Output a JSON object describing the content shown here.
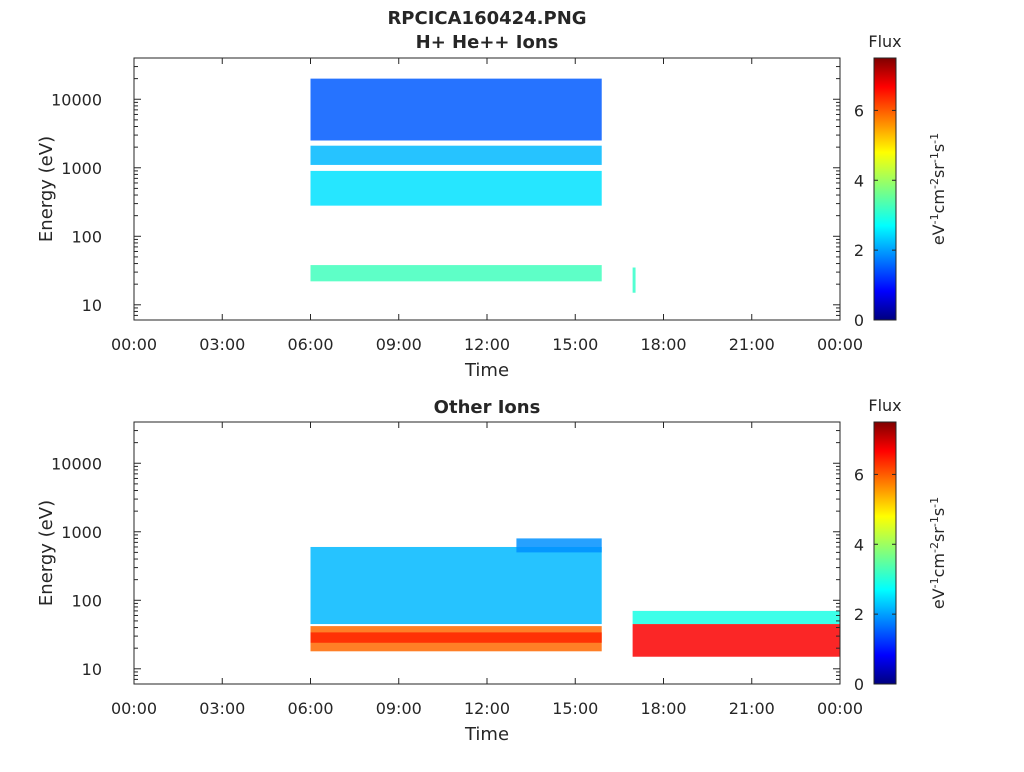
{
  "figure_title": "RPCICA160424.PNG",
  "chart_data": [
    {
      "type": "heatmap",
      "title": "H+ He++ Ions",
      "xlabel": "Time",
      "ylabel": "Energy (eV)",
      "x_tick_labels": [
        "00:00",
        "03:00",
        "06:00",
        "09:00",
        "12:00",
        "15:00",
        "18:00",
        "21:00",
        "00:00"
      ],
      "x_ticks_hours": [
        0,
        3,
        6,
        9,
        12,
        15,
        18,
        21,
        24
      ],
      "xlim_hours": [
        0,
        24
      ],
      "y_scale": "log",
      "ylim": [
        6,
        40000
      ],
      "y_ticks": [
        10,
        100,
        1000,
        10000
      ],
      "y_tick_labels": [
        "10",
        "100",
        "1000",
        "10000"
      ],
      "colorbar": {
        "title": "Flux",
        "label_main": "eV",
        "unit_parts": [
          [
            "eV",
            "-1"
          ],
          [
            "cm",
            "-2"
          ],
          [
            "sr",
            "-1"
          ],
          [
            "s",
            "-1"
          ]
        ],
        "range": [
          0,
          7.5
        ],
        "ticks": [
          0,
          2,
          4,
          6
        ],
        "tick_labels": [
          "0",
          "2",
          "4",
          "6"
        ],
        "colormap": "jet"
      },
      "bands": [
        {
          "t_start": 6.0,
          "t_end": 15.9,
          "energy_low": 22,
          "energy_high": 38,
          "flux": 3.3
        },
        {
          "t_start": 6.0,
          "t_end": 15.9,
          "energy_low": 280,
          "energy_high": 900,
          "flux": 2.6
        },
        {
          "t_start": 6.0,
          "t_end": 15.9,
          "energy_low": 1100,
          "energy_high": 2100,
          "flux": 2.3
        },
        {
          "t_start": 6.0,
          "t_end": 15.9,
          "energy_low": 2500,
          "energy_high": 20000,
          "flux": 1.6
        },
        {
          "t_start": 16.95,
          "t_end": 17.05,
          "energy_low": 15,
          "energy_high": 35,
          "flux": 3.2
        }
      ]
    },
    {
      "type": "heatmap",
      "title": "Other Ions",
      "xlabel": "Time",
      "ylabel": "Energy (eV)",
      "x_tick_labels": [
        "00:00",
        "03:00",
        "06:00",
        "09:00",
        "12:00",
        "15:00",
        "18:00",
        "21:00",
        "00:00"
      ],
      "x_ticks_hours": [
        0,
        3,
        6,
        9,
        12,
        15,
        18,
        21,
        24
      ],
      "xlim_hours": [
        0,
        24
      ],
      "y_scale": "log",
      "ylim": [
        6,
        40000
      ],
      "y_ticks": [
        10,
        100,
        1000,
        10000
      ],
      "y_tick_labels": [
        "10",
        "100",
        "1000",
        "10000"
      ],
      "colorbar": {
        "title": "Flux",
        "label_main": "eV",
        "unit_parts": [
          [
            "eV",
            "-1"
          ],
          [
            "cm",
            "-2"
          ],
          [
            "sr",
            "-1"
          ],
          [
            "s",
            "-1"
          ]
        ],
        "range": [
          0,
          7.5
        ],
        "ticks": [
          0,
          2,
          4,
          6
        ],
        "tick_labels": [
          "0",
          "2",
          "4",
          "6"
        ],
        "colormap": "jet"
      },
      "bands": [
        {
          "t_start": 6.0,
          "t_end": 15.9,
          "energy_low": 18,
          "energy_high": 42,
          "flux": 5.8
        },
        {
          "t_start": 6.0,
          "t_end": 15.9,
          "energy_low": 24,
          "energy_high": 34,
          "flux": 6.3
        },
        {
          "t_start": 6.0,
          "t_end": 15.9,
          "energy_low": 45,
          "energy_high": 600,
          "flux": 2.3
        },
        {
          "t_start": 13.0,
          "t_end": 15.9,
          "energy_low": 500,
          "energy_high": 800,
          "flux": 2.0
        },
        {
          "t_start": 16.95,
          "t_end": 24.0,
          "energy_low": 15,
          "energy_high": 45,
          "flux": 6.6
        },
        {
          "t_start": 16.95,
          "t_end": 24.0,
          "energy_low": 45,
          "energy_high": 70,
          "flux": 3.0
        }
      ]
    }
  ]
}
